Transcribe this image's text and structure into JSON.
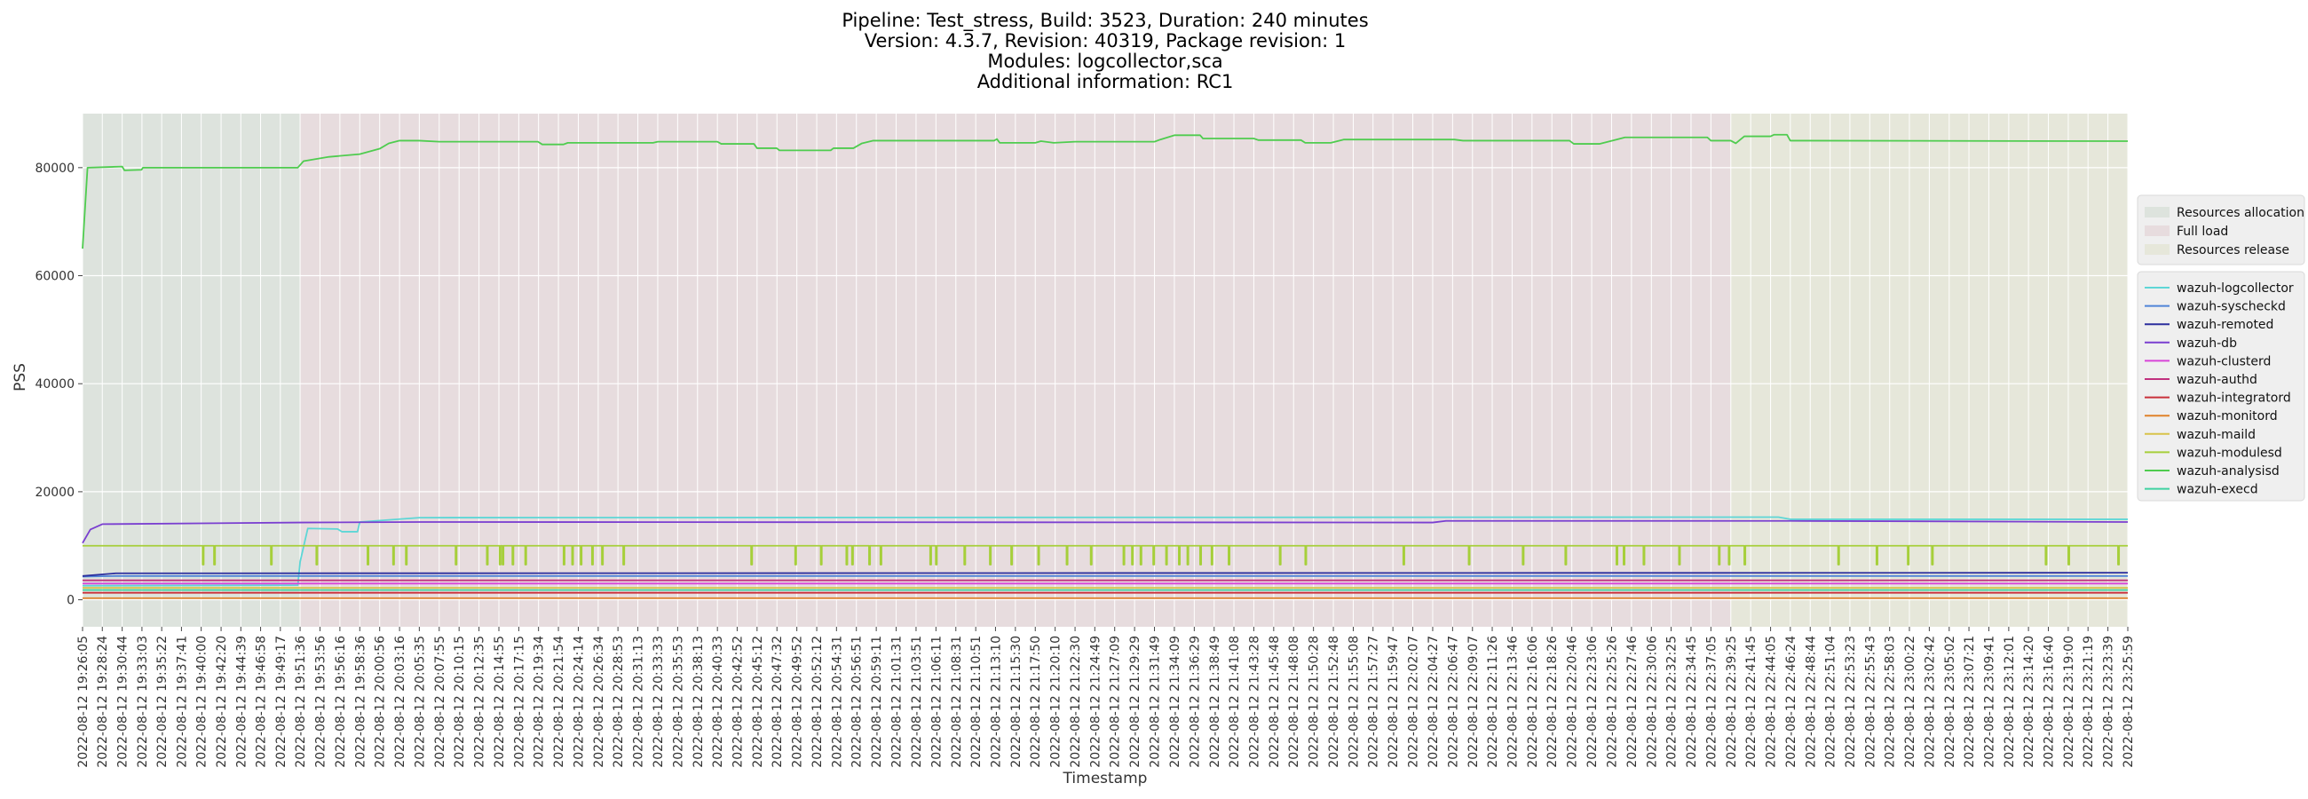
{
  "chart_data": {
    "type": "line",
    "title_lines": [
      "Pipeline: Test_stress, Build: 3523, Duration: 240 minutes",
      "Version: 4.3.7, Revision: 40319, Package revision: 1",
      "Modules: logcollector,sca",
      "Additional information: RC1"
    ],
    "xlabel": "Timestamp",
    "ylabel": "PSS",
    "ylim": [
      -5000,
      90000
    ],
    "yticks": [
      0,
      20000,
      40000,
      60000,
      80000
    ],
    "ytick_labels": [
      "0",
      "20000",
      "40000",
      "60000",
      "80000"
    ],
    "grid": true,
    "legend_placement": "right",
    "x_start": "2022-08-12 19:26:05",
    "x_end": "2022-08-12 23:25:59",
    "xtick_labels": [
      "2022-08-12 19:26:05",
      "2022-08-12 19:28:24",
      "2022-08-12 19:30:44",
      "2022-08-12 19:33:03",
      "2022-08-12 19:35:22",
      "2022-08-12 19:37:41",
      "2022-08-12 19:40:00",
      "2022-08-12 19:42:20",
      "2022-08-12 19:44:39",
      "2022-08-12 19:46:58",
      "2022-08-12 19:49:17",
      "2022-08-12 19:51:36",
      "2022-08-12 19:53:56",
      "2022-08-12 19:56:16",
      "2022-08-12 19:58:36",
      "2022-08-12 20:00:56",
      "2022-08-12 20:03:16",
      "2022-08-12 20:05:35",
      "2022-08-12 20:07:55",
      "2022-08-12 20:10:15",
      "2022-08-12 20:12:35",
      "2022-08-12 20:14:55",
      "2022-08-12 20:17:15",
      "2022-08-12 20:19:34",
      "2022-08-12 20:21:54",
      "2022-08-12 20:24:14",
      "2022-08-12 20:26:34",
      "2022-08-12 20:28:53",
      "2022-08-12 20:31:13",
      "2022-08-12 20:33:33",
      "2022-08-12 20:35:53",
      "2022-08-12 20:38:13",
      "2022-08-12 20:40:33",
      "2022-08-12 20:42:52",
      "2022-08-12 20:45:12",
      "2022-08-12 20:47:32",
      "2022-08-12 20:49:52",
      "2022-08-12 20:52:12",
      "2022-08-12 20:54:31",
      "2022-08-12 20:56:51",
      "2022-08-12 20:59:11",
      "2022-08-12 21:01:31",
      "2022-08-12 21:03:51",
      "2022-08-12 21:06:11",
      "2022-08-12 21:08:31",
      "2022-08-12 21:10:51",
      "2022-08-12 21:13:10",
      "2022-08-12 21:15:30",
      "2022-08-12 21:17:50",
      "2022-08-12 21:20:10",
      "2022-08-12 21:22:30",
      "2022-08-12 21:24:49",
      "2022-08-12 21:27:09",
      "2022-08-12 21:29:29",
      "2022-08-12 21:31:49",
      "2022-08-12 21:34:09",
      "2022-08-12 21:36:29",
      "2022-08-12 21:38:49",
      "2022-08-12 21:41:08",
      "2022-08-12 21:43:28",
      "2022-08-12 21:45:48",
      "2022-08-12 21:48:08",
      "2022-08-12 21:50:28",
      "2022-08-12 21:52:48",
      "2022-08-12 21:55:08",
      "2022-08-12 21:57:27",
      "2022-08-12 21:59:47",
      "2022-08-12 22:02:07",
      "2022-08-12 22:04:27",
      "2022-08-12 22:06:47",
      "2022-08-12 22:09:07",
      "2022-08-12 22:11:26",
      "2022-08-12 22:13:46",
      "2022-08-12 22:16:06",
      "2022-08-12 22:18:26",
      "2022-08-12 22:20:46",
      "2022-08-12 22:23:06",
      "2022-08-12 22:25:26",
      "2022-08-12 22:27:46",
      "2022-08-12 22:30:06",
      "2022-08-12 22:32:25",
      "2022-08-12 22:34:45",
      "2022-08-12 22:37:05",
      "2022-08-12 22:39:25",
      "2022-08-12 22:41:45",
      "2022-08-12 22:44:05",
      "2022-08-12 22:46:24",
      "2022-08-12 22:48:44",
      "2022-08-12 22:51:04",
      "2022-08-12 22:53:23",
      "2022-08-12 22:55:43",
      "2022-08-12 22:58:03",
      "2022-08-12 23:00:22",
      "2022-08-12 23:02:42",
      "2022-08-12 23:05:02",
      "2022-08-12 23:07:21",
      "2022-08-12 23:09:41",
      "2022-08-12 23:12:01",
      "2022-08-12 23:14:20",
      "2022-08-12 23:16:40",
      "2022-08-12 23:19:00",
      "2022-08-12 23:21:19",
      "2022-08-12 23:23:39",
      "2022-08-12 23:25:59"
    ],
    "phases": [
      {
        "name": "Resources allocation",
        "start": "2022-08-12 19:26:05",
        "end": "2022-08-12 19:51:36",
        "color": "#dde3dd"
      },
      {
        "name": "Full load",
        "start": "2022-08-12 19:51:36",
        "end": "2022-08-12 22:39:25",
        "color": "#e7dcde"
      },
      {
        "name": "Resources release",
        "start": "2022-08-12 22:39:25",
        "end": "2022-08-12 23:25:59",
        "color": "#e6e7da"
      }
    ],
    "series": [
      {
        "name": "wazuh-logcollector",
        "color": "#5ed6d6",
        "points": [
          [
            "2022-08-12 19:26:05",
            2600
          ],
          [
            "2022-08-12 19:51:20",
            2700
          ],
          [
            "2022-08-12 19:51:36",
            7000
          ],
          [
            "2022-08-12 19:52:30",
            13200
          ],
          [
            "2022-08-12 19:56:00",
            13100
          ],
          [
            "2022-08-12 19:56:30",
            12600
          ],
          [
            "2022-08-12 19:58:20",
            12600
          ],
          [
            "2022-08-12 19:58:36",
            14400
          ],
          [
            "2022-08-12 20:05:35",
            15200
          ],
          [
            "2022-08-12 22:45:00",
            15300
          ],
          [
            "2022-08-12 22:46:24",
            14900
          ],
          [
            "2022-08-12 23:25:59",
            14900
          ]
        ]
      },
      {
        "name": "wazuh-syscheckd",
        "color": "#4f84d8",
        "points": [
          [
            "2022-08-12 19:26:05",
            4300
          ],
          [
            "2022-08-12 19:30:00",
            4400
          ],
          [
            "2022-08-12 23:25:59",
            4400
          ]
        ]
      },
      {
        "name": "wazuh-remoted",
        "color": "#2c2f9e",
        "points": [
          [
            "2022-08-12 19:26:05",
            4400
          ],
          [
            "2022-08-12 19:30:00",
            4900
          ],
          [
            "2022-08-12 23:25:59",
            5000
          ]
        ]
      },
      {
        "name": "wazuh-db",
        "color": "#7a3fd0",
        "points": [
          [
            "2022-08-12 19:26:05",
            10500
          ],
          [
            "2022-08-12 19:27:00",
            13000
          ],
          [
            "2022-08-12 19:28:24",
            14000
          ],
          [
            "2022-08-12 19:51:36",
            14300
          ],
          [
            "2022-08-12 20:05:35",
            14400
          ],
          [
            "2022-08-12 22:04:27",
            14300
          ],
          [
            "2022-08-12 22:06:00",
            14600
          ],
          [
            "2022-08-12 22:46:24",
            14600
          ],
          [
            "2022-08-12 23:25:59",
            14400
          ]
        ]
      },
      {
        "name": "wazuh-clusterd",
        "color": "#d844d8",
        "points": [
          [
            "2022-08-12 19:26:05",
            3000
          ],
          [
            "2022-08-12 23:25:59",
            3000
          ]
        ]
      },
      {
        "name": "wazuh-authd",
        "color": "#c0307e",
        "points": [
          [
            "2022-08-12 19:26:05",
            3600
          ],
          [
            "2022-08-12 23:25:59",
            3600
          ]
        ]
      },
      {
        "name": "wazuh-integratord",
        "color": "#c9303a",
        "points": [
          [
            "2022-08-12 19:26:05",
            1300
          ],
          [
            "2022-08-12 23:25:59",
            1300
          ]
        ]
      },
      {
        "name": "wazuh-monitord",
        "color": "#e0822a",
        "points": [
          [
            "2022-08-12 19:26:05",
            300
          ],
          [
            "2022-08-12 23:25:59",
            300
          ]
        ]
      },
      {
        "name": "wazuh-maild",
        "color": "#d8c34a",
        "points": [
          [
            "2022-08-12 19:26:05",
            2200
          ],
          [
            "2022-08-12 23:25:59",
            2200
          ]
        ]
      },
      {
        "name": "wazuh-modulesd",
        "color": "#a6cf3a",
        "points": [
          [
            "2022-08-12 19:26:05",
            10000
          ],
          [
            "2022-08-12 23:25:59",
            10000
          ]
        ]
      },
      {
        "name": "wazuh-analysisd",
        "color": "#4fcc4f",
        "points": [
          [
            "2022-08-12 19:26:05",
            65000
          ],
          [
            "2022-08-12 19:26:40",
            80000
          ],
          [
            "2022-08-12 19:30:44",
            80200
          ],
          [
            "2022-08-12 19:31:00",
            79500
          ],
          [
            "2022-08-12 19:33:00",
            79600
          ],
          [
            "2022-08-12 19:33:10",
            80000
          ],
          [
            "2022-08-12 19:51:20",
            80000
          ],
          [
            "2022-08-12 19:52:00",
            81200
          ],
          [
            "2022-08-12 19:55:00",
            82000
          ],
          [
            "2022-08-12 19:58:36",
            82500
          ],
          [
            "2022-08-12 20:00:56",
            83500
          ],
          [
            "2022-08-12 20:02:00",
            84500
          ],
          [
            "2022-08-12 20:03:16",
            85000
          ],
          [
            "2022-08-12 20:05:35",
            85000
          ],
          [
            "2022-08-12 20:07:55",
            84800
          ],
          [
            "2022-08-12 20:19:30",
            84800
          ],
          [
            "2022-08-12 20:20:00",
            84300
          ],
          [
            "2022-08-12 20:22:30",
            84300
          ],
          [
            "2022-08-12 20:23:00",
            84600
          ],
          [
            "2022-08-12 20:33:00",
            84600
          ],
          [
            "2022-08-12 20:33:33",
            84800
          ],
          [
            "2022-08-12 20:40:33",
            84800
          ],
          [
            "2022-08-12 20:41:00",
            84400
          ],
          [
            "2022-08-12 20:44:50",
            84400
          ],
          [
            "2022-08-12 20:45:12",
            83600
          ],
          [
            "2022-08-12 20:47:30",
            83600
          ],
          [
            "2022-08-12 20:47:50",
            83200
          ],
          [
            "2022-08-12 20:53:50",
            83200
          ],
          [
            "2022-08-12 20:54:10",
            83600
          ],
          [
            "2022-08-12 20:56:30",
            83600
          ],
          [
            "2022-08-12 20:57:30",
            84500
          ],
          [
            "2022-08-12 20:58:50",
            85000
          ],
          [
            "2022-08-12 21:01:31",
            85000
          ],
          [
            "2022-08-12 21:13:00",
            85000
          ],
          [
            "2022-08-12 21:13:20",
            85300
          ],
          [
            "2022-08-12 21:13:40",
            84600
          ],
          [
            "2022-08-12 21:17:50",
            84600
          ],
          [
            "2022-08-12 21:18:30",
            84900
          ],
          [
            "2022-08-12 21:20:00",
            84600
          ],
          [
            "2022-08-12 21:22:30",
            84800
          ],
          [
            "2022-08-12 21:31:49",
            84800
          ],
          [
            "2022-08-12 21:32:30",
            85200
          ],
          [
            "2022-08-12 21:34:09",
            86000
          ],
          [
            "2022-08-12 21:37:10",
            86000
          ],
          [
            "2022-08-12 21:37:30",
            85400
          ],
          [
            "2022-08-12 21:43:28",
            85400
          ],
          [
            "2022-08-12 21:44:00",
            85100
          ],
          [
            "2022-08-12 21:49:00",
            85100
          ],
          [
            "2022-08-12 21:49:30",
            84600
          ],
          [
            "2022-08-12 21:52:30",
            84600
          ],
          [
            "2022-08-12 21:54:00",
            85200
          ],
          [
            "2022-08-12 22:01:00",
            85200
          ],
          [
            "2022-08-12 22:07:00",
            85200
          ],
          [
            "2022-08-12 22:08:00",
            85000
          ],
          [
            "2022-08-12 22:20:30",
            85000
          ],
          [
            "2022-08-12 22:21:00",
            84400
          ],
          [
            "2022-08-12 22:24:00",
            84400
          ],
          [
            "2022-08-12 22:26:00",
            85200
          ],
          [
            "2022-08-12 22:27:00",
            85600
          ],
          [
            "2022-08-12 22:36:40",
            85600
          ],
          [
            "2022-08-12 22:37:05",
            85000
          ],
          [
            "2022-08-12 22:39:25",
            85000
          ],
          [
            "2022-08-12 22:40:00",
            84500
          ],
          [
            "2022-08-12 22:41:00",
            85800
          ],
          [
            "2022-08-12 22:44:05",
            85800
          ],
          [
            "2022-08-12 22:44:30",
            86100
          ],
          [
            "2022-08-12 22:46:00",
            86100
          ],
          [
            "2022-08-12 22:46:24",
            85000
          ],
          [
            "2022-08-12 23:25:59",
            84900
          ]
        ]
      },
      {
        "name": "wazuh-execd",
        "color": "#3fd2a0",
        "points": [
          [
            "2022-08-12 19:26:05",
            1800
          ],
          [
            "2022-08-12 23:25:59",
            1800
          ]
        ]
      }
    ],
    "modulesd_dips": [
      "2022-08-12 19:40:10",
      "2022-08-12 19:41:30",
      "2022-08-12 19:48:10",
      "2022-08-12 19:53:30",
      "2022-08-12 19:59:30",
      "2022-08-12 20:02:30",
      "2022-08-12 20:04:00",
      "2022-08-12 20:09:50",
      "2022-08-12 20:13:30",
      "2022-08-12 20:15:00",
      "2022-08-12 20:15:20",
      "2022-08-12 20:16:30",
      "2022-08-12 20:18:00",
      "2022-08-12 20:22:30",
      "2022-08-12 20:23:30",
      "2022-08-12 20:24:30",
      "2022-08-12 20:25:50",
      "2022-08-12 20:27:00",
      "2022-08-12 20:29:30",
      "2022-08-12 20:44:30",
      "2022-08-12 20:49:40",
      "2022-08-12 20:52:40",
      "2022-08-12 20:55:40",
      "2022-08-12 20:56:20",
      "2022-08-12 20:58:20",
      "2022-08-12 20:59:40",
      "2022-08-12 21:05:30",
      "2022-08-12 21:06:10",
      "2022-08-12 21:09:30",
      "2022-08-12 21:12:30",
      "2022-08-12 21:15:00",
      "2022-08-12 21:18:10",
      "2022-08-12 21:21:30",
      "2022-08-12 21:24:20",
      "2022-08-12 21:28:10",
      "2022-08-12 21:29:10",
      "2022-08-12 21:30:10",
      "2022-08-12 21:31:40",
      "2022-08-12 21:33:10",
      "2022-08-12 21:34:40",
      "2022-08-12 21:35:40",
      "2022-08-12 21:37:10",
      "2022-08-12 21:38:30",
      "2022-08-12 21:40:30",
      "2022-08-12 21:46:30",
      "2022-08-12 21:49:30",
      "2022-08-12 22:01:00",
      "2022-08-12 22:08:40",
      "2022-08-12 22:15:00",
      "2022-08-12 22:20:00",
      "2022-08-12 22:26:00",
      "2022-08-12 22:26:50",
      "2022-08-12 22:29:10",
      "2022-08-12 22:33:20",
      "2022-08-12 22:38:00",
      "2022-08-12 22:39:10",
      "2022-08-12 22:41:00",
      "2022-08-12 22:52:00",
      "2022-08-12 22:56:30",
      "2022-08-12 23:00:10",
      "2022-08-12 23:03:00",
      "2022-08-12 23:16:20",
      "2022-08-12 23:19:00",
      "2022-08-12 23:24:50"
    ],
    "modulesd_dip_value": 6500
  }
}
